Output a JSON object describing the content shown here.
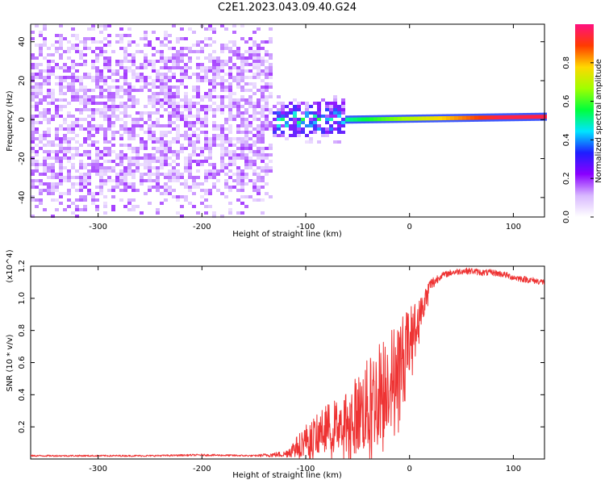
{
  "title": "C2E1.2023.043.09.40.G24",
  "chart_data": [
    {
      "type": "heatmap",
      "xlabel": "Height of straight line (km)",
      "ylabel": "Frequency (Hz)",
      "xlim": [
        -365,
        130
      ],
      "ylim": [
        -50,
        49
      ],
      "xticks": [
        -300,
        -200,
        -100,
        0,
        100
      ],
      "xtick_labels": [
        "-300",
        "-200",
        "-100",
        "0",
        "100"
      ],
      "yticks": [
        -40,
        -20,
        0,
        20,
        40
      ],
      "ytick_labels": [
        "-40",
        "-20",
        "0",
        "20",
        "40"
      ],
      "colorbar": {
        "label": "Normalized spectral amplitude",
        "range": [
          0,
          1
        ],
        "ticks": [
          0.0,
          0.2,
          0.4,
          0.6,
          0.8
        ],
        "tick_labels": [
          "0.0",
          "0.2",
          "0.4",
          "0.6",
          "0.8"
        ],
        "colormap": [
          "#ffffff",
          "#d8b8ff",
          "#8a00ff",
          "#1e1eff",
          "#00e5ff",
          "#00ff3c",
          "#a0ff00",
          "#ffd800",
          "#ff3b00",
          "#ff1080"
        ]
      },
      "regions": [
        {
          "name": "noise",
          "x": [
            -365,
            -130
          ],
          "freq_spread": 49,
          "amplitude": [
            0.05,
            0.2
          ]
        },
        {
          "name": "transition",
          "x": [
            -130,
            -60
          ],
          "freq_spread": 12,
          "amplitude": [
            0.15,
            0.45
          ]
        },
        {
          "name": "tone",
          "x": [
            -60,
            130
          ],
          "freq_start": 0,
          "freq_end": 1.5,
          "amplitude": [
            0.5,
            0.95
          ]
        }
      ],
      "grid": false
    },
    {
      "type": "line",
      "xlabel": "Height of straight line (km)",
      "ylabel": "SNR (10 * v/v)",
      "ylabel_multiplier": "(x10^4)",
      "xlim": [
        -365,
        130
      ],
      "ylim": [
        0,
        1.2
      ],
      "xticks": [
        -300,
        -200,
        -100,
        0,
        100
      ],
      "xtick_labels": [
        "-300",
        "-200",
        "-100",
        "0",
        "100"
      ],
      "yticks": [
        0.2,
        0.4,
        0.6,
        0.8,
        1.0,
        1.2
      ],
      "ytick_labels": [
        "0.2",
        "0.4",
        "0.6",
        "0.8",
        "1.0",
        "1.2"
      ],
      "line_color": "#ee3333",
      "x": [
        -365,
        -300,
        -250,
        -200,
        -150,
        -120,
        -110,
        -100,
        -90,
        -80,
        -70,
        -60,
        -50,
        -40,
        -30,
        -20,
        -10,
        0,
        10,
        20,
        30,
        40,
        50,
        60,
        70,
        80,
        90,
        100,
        110,
        120,
        130
      ],
      "y": [
        0.02,
        0.02,
        0.02,
        0.025,
        0.02,
        0.03,
        0.07,
        0.12,
        0.15,
        0.2,
        0.22,
        0.25,
        0.28,
        0.33,
        0.42,
        0.5,
        0.6,
        0.75,
        0.9,
        1.08,
        1.14,
        1.16,
        1.17,
        1.17,
        1.16,
        1.16,
        1.15,
        1.13,
        1.12,
        1.11,
        1.1
      ],
      "noise_amplitude": [
        0.005,
        0.005,
        0.005,
        0.006,
        0.005,
        0.02,
        0.06,
        0.1,
        0.12,
        0.14,
        0.16,
        0.2,
        0.25,
        0.3,
        0.32,
        0.3,
        0.28,
        0.2,
        0.1,
        0.05,
        0.02,
        0.02,
        0.02,
        0.02,
        0.02,
        0.02,
        0.02,
        0.02,
        0.02,
        0.02,
        0.02
      ],
      "grid": false
    }
  ]
}
